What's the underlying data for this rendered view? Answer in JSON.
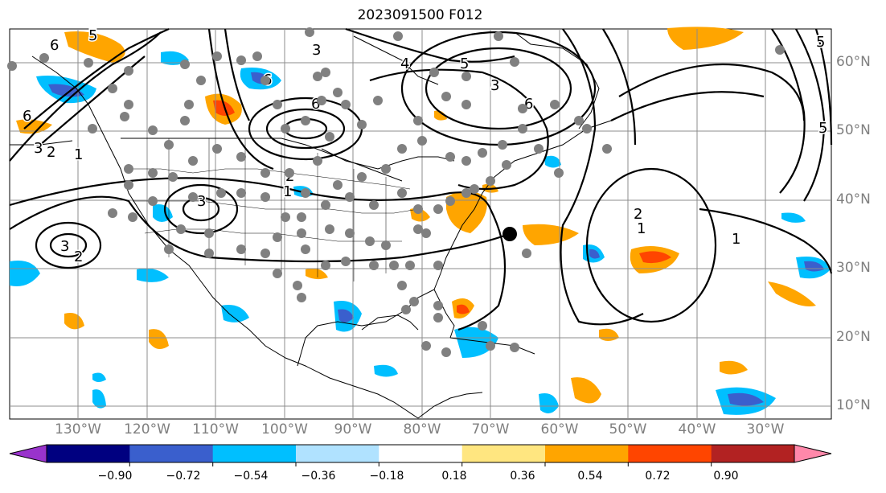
{
  "title": "2023091500 F012",
  "lat_labels": [
    "60°N",
    "50°N",
    "40°N",
    "30°N",
    "20°N",
    "10°N"
  ],
  "lon_labels": [
    "130°W",
    "120°W",
    "110°W",
    "100°W",
    "90°W",
    "80°W",
    "70°W",
    "60°W",
    "50°W",
    "40°W",
    "30°W"
  ],
  "contour_labels": [
    "6",
    "5",
    "3",
    "2",
    "1",
    "6",
    "3",
    "2",
    "4",
    "5",
    "3",
    "6",
    "6",
    "2",
    "1",
    "3",
    "2",
    "1",
    "1",
    "6",
    "5",
    "3",
    "5"
  ],
  "colorbar": {
    "tick_labels": [
      "−0.90",
      "−0.72",
      "−0.54",
      "−0.36",
      "−0.18",
      "0.18",
      "0.36",
      "0.54",
      "0.72",
      "0.90"
    ],
    "colors": [
      "#9933cc",
      "#000080",
      "#3a5fcd",
      "#00bfff",
      "#b0e2ff",
      "#ffffff",
      "#ffe680",
      "#ffa500",
      "#ff4500",
      "#b22222",
      "#ff88aa"
    ]
  },
  "palette": {
    "strong_neg": "#3a5fcd",
    "neg": "#00bfff",
    "weak_neg": "#b0e2ff",
    "pos": "#ffa500",
    "strong_pos": "#ff4500",
    "obs_dot": "#808080",
    "storm": "#000000"
  }
}
